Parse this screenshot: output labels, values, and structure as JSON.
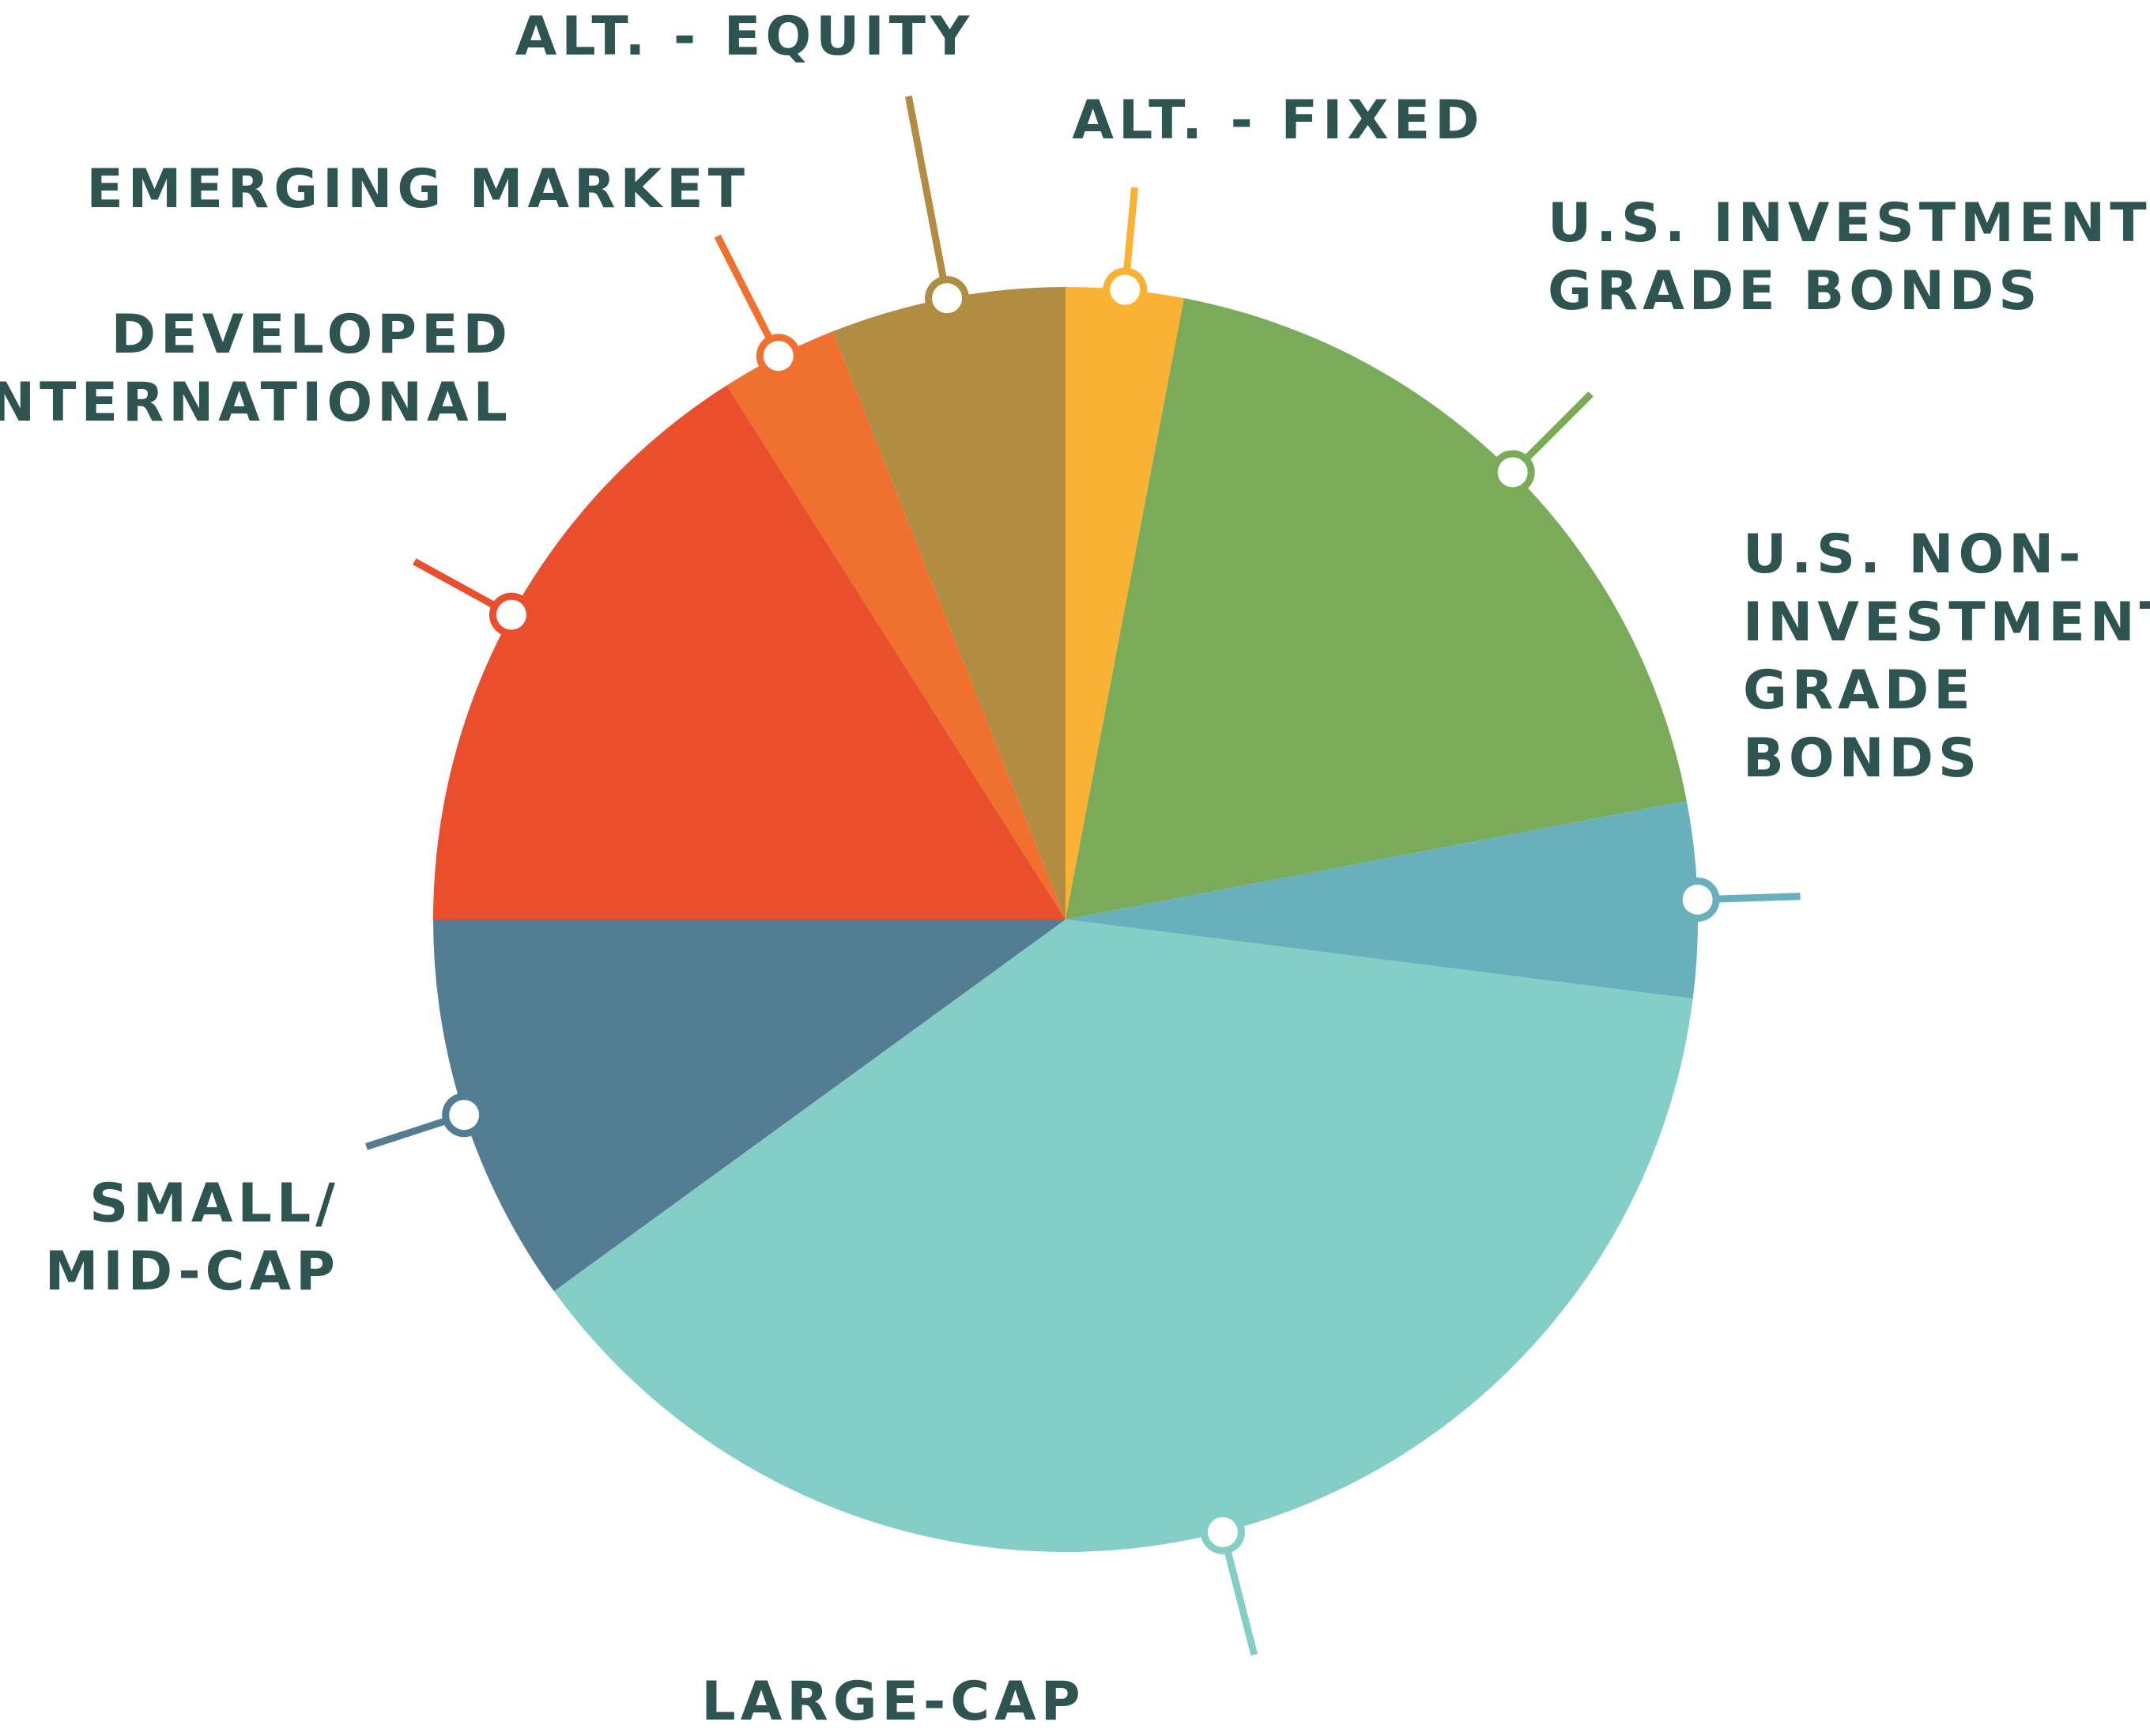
{
  "chart_data": {
    "type": "pie",
    "title": "",
    "start_angle_deg": 0,
    "direction": "clockwise",
    "slices": [
      {
        "name": "ALT. - FIXED",
        "label_lines": [
          "ALT. - FIXED"
        ],
        "value": 3.0,
        "color": "#f9b233"
      },
      {
        "name": "U.S. INVESTMENT GRADE BONDS",
        "label_lines": [
          "U.S. INVESTMENT",
          "GRADE BONDS"
        ],
        "value": 19.0,
        "color": "#7aab58"
      },
      {
        "name": "U.S. NON-INVESTMENT GRADE BONDS",
        "label_lines": [
          "U.S. NON-",
          "INVESTMENT",
          "GRADE",
          "BONDS"
        ],
        "value": 5.0,
        "color": "#6aafbc"
      },
      {
        "name": "LARGE-CAP",
        "label_lines": [
          "LARGE-CAP"
        ],
        "value": 38.0,
        "color": "#84cec7"
      },
      {
        "name": "SMALL/ MID-CAP",
        "label_lines": [
          "SMALL/",
          "MID-CAP"
        ],
        "value": 10.0,
        "color": "#547d93"
      },
      {
        "name": "DEVELOPED INTERNATIONAL",
        "label_lines": [
          "DEVELOPED",
          "INTERNATIONAL"
        ],
        "value": 16.0,
        "color": "#e94e2d"
      },
      {
        "name": "EMERGING MARKET",
        "label_lines": [
          "EMERGING MARKET"
        ],
        "value": 3.0,
        "color": "#f07030"
      },
      {
        "name": "ALT. - EQUITY",
        "label_lines": [
          "ALT. - EQUITY"
        ],
        "value": 6.0,
        "color": "#b08d43"
      }
    ]
  }
}
